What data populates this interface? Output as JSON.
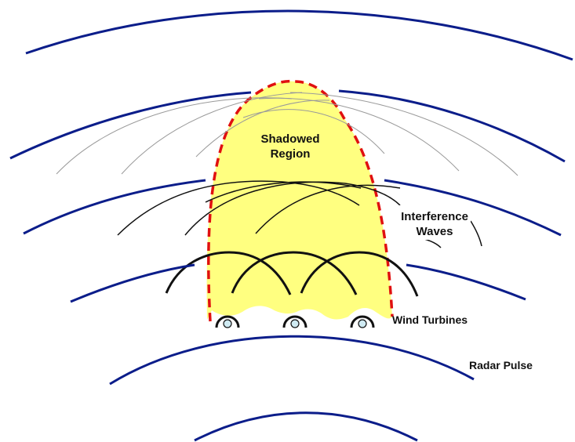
{
  "labels": {
    "shadowed_line1": "Shadowed",
    "shadowed_line2": "Region",
    "interference_line1": "Interference",
    "interference_line2": "Waves",
    "wind_turbines": "Wind Turbines",
    "radar_pulse": "Radar Pulse"
  },
  "colors": {
    "radar_wave": "#0b1d8a",
    "shadow_fill": "#ffff80",
    "shadow_outline": "#e01010",
    "interference_wave": "#111111",
    "faint_wave": "#9a9a9a",
    "turbine_fill": "#cfeaf2"
  },
  "turbine_count": 3
}
